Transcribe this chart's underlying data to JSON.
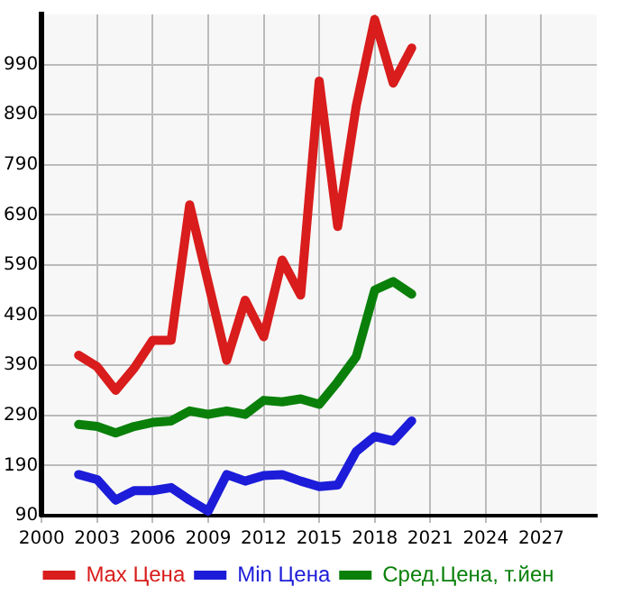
{
  "chart_data": {
    "type": "line",
    "x": [
      2002,
      2003,
      2004,
      2005,
      2006,
      2007,
      2008,
      2009,
      2010,
      2011,
      2012,
      2013,
      2014,
      2015,
      2016,
      2017,
      2018,
      2019,
      2020
    ],
    "series": [
      {
        "name": "Max Цена",
        "color": "#d91c1c",
        "values": [
          410,
          387,
          340,
          384,
          440,
          440,
          710,
          555,
          400,
          520,
          447,
          600,
          530,
          957,
          667,
          907,
          1080,
          953,
          1023
        ]
      },
      {
        "name": "Min Цена",
        "color": "#1c1cd9",
        "values": [
          172,
          162,
          121,
          140,
          140,
          146,
          121,
          99,
          172,
          159,
          170,
          172,
          159,
          148,
          151,
          218,
          248,
          239,
          279
        ]
      },
      {
        "name": "Сред.Цена, т.йен",
        "color": "#0a800a",
        "values": [
          272,
          268,
          255,
          268,
          276,
          279,
          299,
          292,
          299,
          292,
          320,
          317,
          323,
          312,
          357,
          407,
          540,
          557,
          532
        ]
      }
    ],
    "xlim": [
      2000,
      2030
    ],
    "xticks": [
      2000,
      2003,
      2006,
      2009,
      2012,
      2015,
      2018,
      2021,
      2024,
      2027
    ],
    "ylim": [
      90,
      1090
    ],
    "yticks": [
      90,
      190,
      290,
      390,
      490,
      590,
      690,
      790,
      890,
      990
    ],
    "grid": true,
    "legend": "bottom",
    "marker": "none",
    "line_style": "solid"
  }
}
